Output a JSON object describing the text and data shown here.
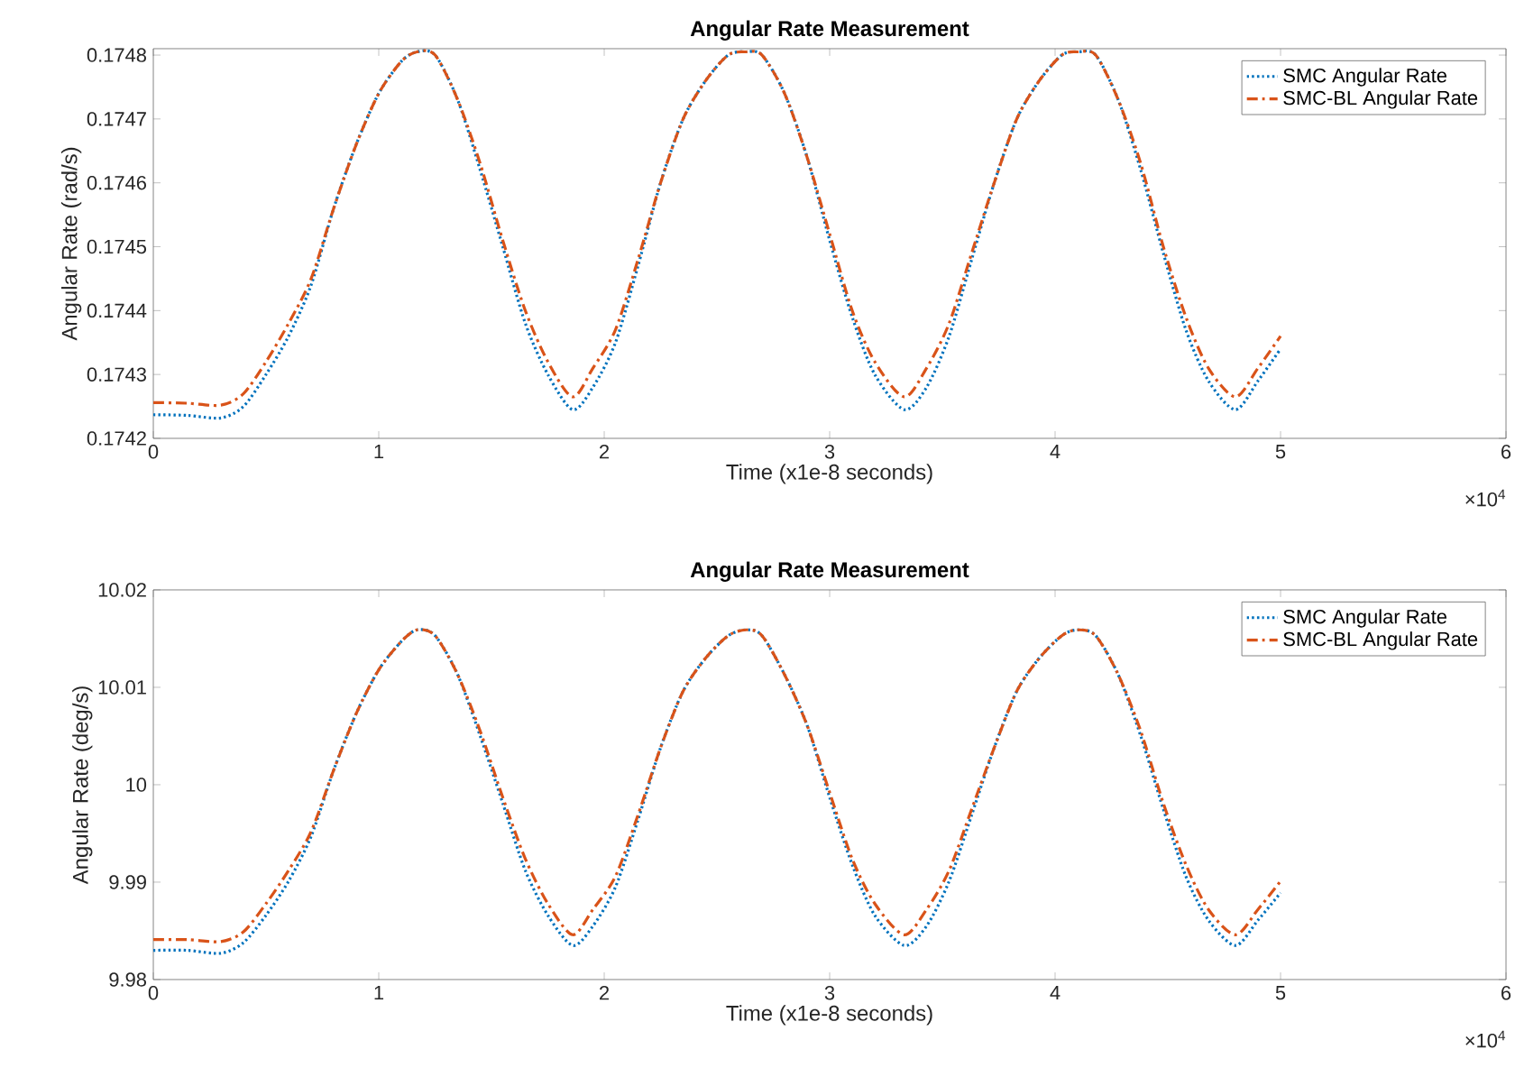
{
  "chart_data": [
    {
      "type": "line",
      "title": "Angular Rate Measurement",
      "xlabel": "Time (x1e-8 seconds)",
      "ylabel": "Angular Rate (rad/s)",
      "x": [
        0,
        0.15,
        0.3,
        0.4,
        0.5,
        0.6,
        0.7,
        0.8,
        0.9,
        1,
        1.1,
        1.17,
        1.25,
        1.35,
        1.45,
        1.55,
        1.65,
        1.75,
        1.86,
        1.95,
        2.05,
        2.15,
        2.25,
        2.35,
        2.45,
        2.55,
        2.63,
        2.7,
        2.8,
        2.9,
        3,
        3.1,
        3.2,
        3.33,
        3.43,
        3.53,
        3.63,
        3.73,
        3.83,
        3.93,
        4.03,
        4.1,
        4.18,
        4.28,
        4.38,
        4.48,
        4.58,
        4.68,
        4.8,
        4.9,
        5
      ],
      "series": [
        {
          "name": "SMC Angular Rate",
          "color": "#0072bd",
          "line_style": "dotted",
          "values": [
            0.174237,
            0.174236,
            0.174232,
            0.17425,
            0.1743,
            0.17436,
            0.17444,
            0.17456,
            0.17466,
            0.17474,
            0.17479,
            0.174805,
            0.1748,
            0.17473,
            0.17462,
            0.1745,
            0.17438,
            0.1743,
            0.174245,
            0.17428,
            0.17435,
            0.17447,
            0.1746,
            0.1747,
            0.17476,
            0.1748,
            0.174805,
            0.1748,
            0.17474,
            0.17464,
            0.17451,
            0.17439,
            0.1743,
            0.174245,
            0.17428,
            0.17436,
            0.17448,
            0.1746,
            0.1747,
            0.17476,
            0.1748,
            0.174805,
            0.1748,
            0.17473,
            0.17462,
            0.17449,
            0.17437,
            0.17429,
            0.174245,
            0.17429,
            0.17434
          ]
        },
        {
          "name": "SMC-BL Angular Rate",
          "color": "#d95319",
          "line_style": "dashed",
          "values": [
            0.174256,
            0.174255,
            0.174252,
            0.17427,
            0.17432,
            0.17438,
            0.17445,
            0.17456,
            0.17466,
            0.17474,
            0.17479,
            0.174805,
            0.1748,
            0.17473,
            0.17463,
            0.17451,
            0.1744,
            0.17432,
            0.174265,
            0.17431,
            0.17437,
            0.17448,
            0.1746,
            0.1747,
            0.17476,
            0.1748,
            0.174805,
            0.1748,
            0.17474,
            0.17464,
            0.17452,
            0.1744,
            0.17432,
            0.174265,
            0.17431,
            0.17438,
            0.17449,
            0.1746,
            0.1747,
            0.17476,
            0.1748,
            0.174805,
            0.1748,
            0.17473,
            0.17463,
            0.1745,
            0.17439,
            0.17431,
            0.174265,
            0.17431,
            0.17436
          ]
        }
      ],
      "xlim": [
        0,
        6
      ],
      "xticks": [
        0,
        1,
        2,
        3,
        4,
        5,
        6
      ],
      "ylim": [
        0.1742,
        0.17481
      ],
      "yticks": [
        0.1742,
        0.1743,
        0.1744,
        0.1745,
        0.1746,
        0.1747,
        0.1748
      ],
      "annotations": [
        "×10$^{4}$"
      ],
      "grid": false,
      "legend": "top right",
      "marker": "none"
    },
    {
      "type": "line",
      "title": "Angular Rate Measurement",
      "xlabel": "Time (x1e-8 seconds)",
      "ylabel": "Angular Rate (deg/s)",
      "x": [
        0,
        0.15,
        0.3,
        0.4,
        0.5,
        0.6,
        0.7,
        0.8,
        0.9,
        1,
        1.1,
        1.17,
        1.25,
        1.35,
        1.45,
        1.55,
        1.65,
        1.75,
        1.86,
        1.95,
        2.05,
        2.15,
        2.25,
        2.35,
        2.45,
        2.55,
        2.63,
        2.7,
        2.8,
        2.9,
        3,
        3.1,
        3.2,
        3.33,
        3.43,
        3.53,
        3.63,
        3.73,
        3.83,
        3.93,
        4.03,
        4.1,
        4.18,
        4.28,
        4.38,
        4.48,
        4.58,
        4.68,
        4.8,
        4.9,
        5
      ],
      "series": [
        {
          "name": "SMC Angular Rate",
          "color": "#0072bd",
          "line_style": "dotted",
          "values": [
            9.983,
            9.983,
            9.9827,
            9.9838,
            9.9866,
            9.9901,
            9.9947,
            10.0015,
            10.0073,
            10.0118,
            10.0147,
            10.0159,
            10.0153,
            10.0113,
            10.005,
            9.9981,
            9.9912,
            9.9866,
            9.9835,
            9.9855,
            9.9895,
            9.9964,
            10.0038,
            10.0096,
            10.013,
            10.0153,
            10.0159,
            10.0153,
            10.0113,
            10.0061,
            9.9987,
            9.9918,
            9.9866,
            9.9835,
            9.9855,
            9.9901,
            9.9969,
            10.0038,
            10.0096,
            10.013,
            10.0153,
            10.0159,
            10.0153,
            10.0113,
            10.005,
            9.9975,
            9.9906,
            9.9861,
            9.9835,
            9.9861,
            9.9889
          ]
        },
        {
          "name": "SMC-BL Angular Rate",
          "color": "#d95319",
          "line_style": "dashed",
          "values": [
            9.9841,
            9.9841,
            9.9839,
            9.9849,
            9.9878,
            9.9912,
            9.9952,
            10.0015,
            10.0073,
            10.0118,
            10.0147,
            10.0159,
            10.0153,
            10.0113,
            10.0055,
            9.9987,
            9.9924,
            9.9878,
            9.9846,
            9.9872,
            9.9906,
            9.9969,
            10.0038,
            10.0096,
            10.013,
            10.0153,
            10.0159,
            10.0153,
            10.0113,
            10.0061,
            9.9992,
            9.9924,
            9.9878,
            9.9846,
            9.9872,
            9.9912,
            9.9975,
            10.0038,
            10.0096,
            10.013,
            10.0153,
            10.0159,
            10.0153,
            10.0113,
            10.0055,
            9.9981,
            9.9918,
            9.9872,
            9.9846,
            9.9872,
            9.9901
          ]
        }
      ],
      "xlim": [
        0,
        6
      ],
      "xticks": [
        0,
        1,
        2,
        3,
        4,
        5,
        6
      ],
      "ylim": [
        9.98,
        10.02
      ],
      "yticks": [
        9.98,
        9.99,
        10,
        10.01,
        10.02
      ],
      "annotations": [
        "×10$^{4}$"
      ],
      "grid": false,
      "legend": "top right",
      "marker": "none"
    }
  ]
}
